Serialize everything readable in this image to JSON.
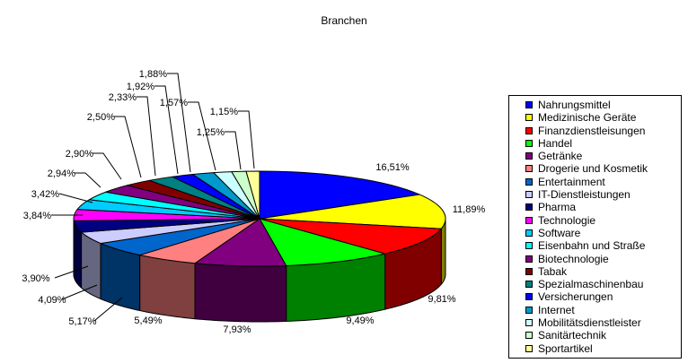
{
  "chart_data": {
    "type": "pie",
    "title": "Branchen",
    "legend_position": "right",
    "categories": [
      "Nahrungsmittel",
      "Medizinische Geräte",
      "Finanzdienstleisungen",
      "Handel",
      "Getränke",
      "Drogerie und Kosmetik",
      "Entertainment",
      "IT-Dienstleistungen",
      "Pharma",
      "Technologie",
      "Software",
      "Eisenbahn und Straße",
      "Biotechnologie",
      "Tabak",
      "Spezialmaschinenbau",
      "Versicherungen",
      "Internet",
      "Mobilitätsdienstleister",
      "Sanitärtechnik",
      "Sportartikel"
    ],
    "values": [
      16.51,
      11.89,
      9.81,
      9.49,
      7.93,
      5.49,
      5.17,
      4.09,
      3.9,
      3.84,
      3.42,
      2.94,
      2.9,
      2.5,
      2.33,
      1.92,
      1.88,
      1.57,
      1.25,
      1.15
    ],
    "labels": [
      "16,51%",
      "11,89%",
      "9,81%",
      "9,49%",
      "7,93%",
      "5,49%",
      "5,17%",
      "4,09%",
      "3,90%",
      "3,84%",
      "3,42%",
      "2,94%",
      "2,90%",
      "2,50%",
      "2,33%",
      "1,92%",
      "1,88%",
      "1,57%",
      "1,25%",
      "1,15%"
    ],
    "colors": [
      "#0000ff",
      "#ffff00",
      "#ff0000",
      "#00ff00",
      "#800080",
      "#ff8080",
      "#0066cc",
      "#ccccff",
      "#000080",
      "#ff00ff",
      "#00ccff",
      "#00ffff",
      "#800080",
      "#800000",
      "#008080",
      "#0000ff",
      "#0099cc",
      "#ccffff",
      "#ccffcc",
      "#ffff99"
    ]
  }
}
